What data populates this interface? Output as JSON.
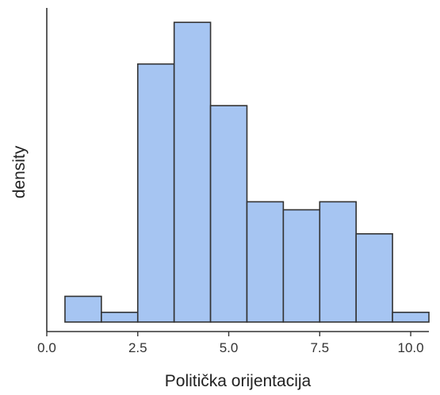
{
  "chart_data": {
    "type": "bar",
    "variant": "histogram",
    "xlabel": "Politička orijentacija",
    "ylabel": "density",
    "xlim": [
      0,
      10.5
    ],
    "ylim": [
      0,
      0.202
    ],
    "x_ticks": [
      "0.0",
      "2.5",
      "5.0",
      "7.5",
      "10.0"
    ],
    "show_y_ticks": false,
    "grid": false,
    "bar_color": "#a6c5f2",
    "bar_edge_color": "#333333",
    "bins": [
      {
        "x0": 0.5,
        "x1": 1.5,
        "value": 0.022
      },
      {
        "x0": 1.5,
        "x1": 2.5,
        "value": 0.012
      },
      {
        "x0": 2.5,
        "x1": 3.5,
        "value": 0.167
      },
      {
        "x0": 3.5,
        "x1": 4.5,
        "value": 0.193
      },
      {
        "x0": 4.5,
        "x1": 5.5,
        "value": 0.141
      },
      {
        "x0": 5.5,
        "x1": 6.5,
        "value": 0.081
      },
      {
        "x0": 6.5,
        "x1": 7.5,
        "value": 0.076
      },
      {
        "x0": 7.5,
        "x1": 8.5,
        "value": 0.081
      },
      {
        "x0": 8.5,
        "x1": 9.5,
        "value": 0.061
      },
      {
        "x0": 9.5,
        "x1": 10.5,
        "value": 0.012
      }
    ]
  }
}
